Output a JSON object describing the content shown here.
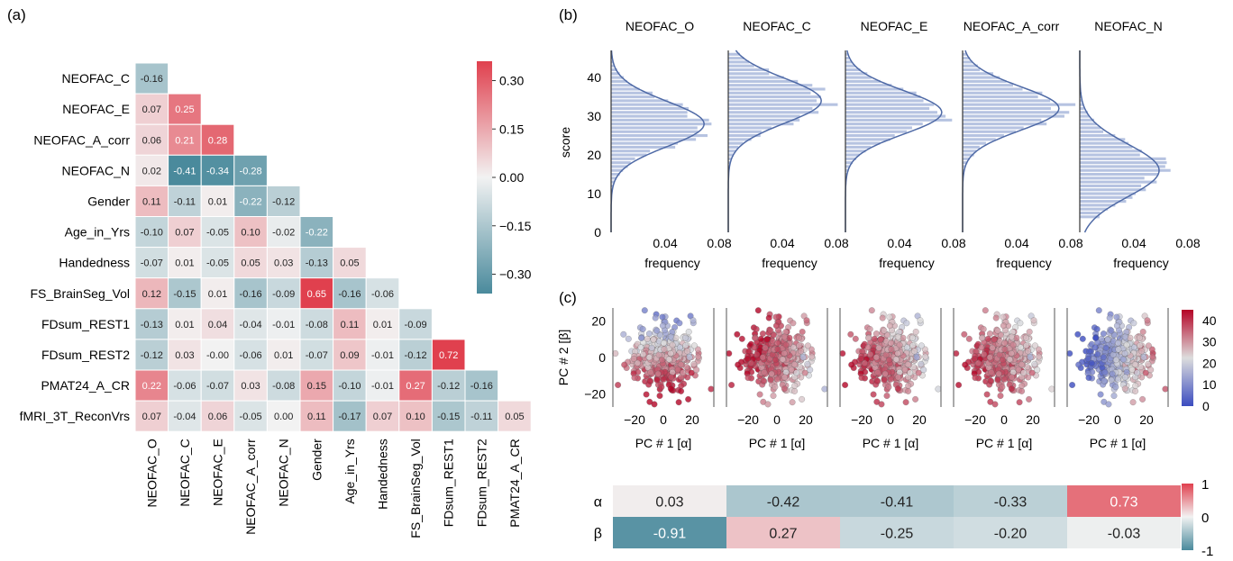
{
  "chart_data": [
    {
      "type": "heatmap",
      "panel_label": "(a)",
      "variables": [
        "NEOFAC_O",
        "NEOFAC_C",
        "NEOFAC_E",
        "NEOFAC_A_corr",
        "NEOFAC_N",
        "Gender",
        "Age_in_Yrs",
        "Handedness",
        "FS_BrainSeg_Vol",
        "FDsum_REST1",
        "FDsum_REST2",
        "PMAT24_A_CR",
        "fMRI_3T_ReconVrs"
      ],
      "row_labels": [
        "NEOFAC_C",
        "NEOFAC_E",
        "NEOFAC_A_corr",
        "NEOFAC_N",
        "Gender",
        "Age_in_Yrs",
        "Handedness",
        "FS_BrainSeg_Vol",
        "FDsum_REST1",
        "FDsum_REST2",
        "PMAT24_A_CR",
        "fMRI_3T_ReconVrs"
      ],
      "col_labels": [
        "NEOFAC_O",
        "NEOFAC_C",
        "NEOFAC_E",
        "NEOFAC_A_corr",
        "NEOFAC_N",
        "Gender",
        "Age_in_Yrs",
        "Handedness",
        "FS_BrainSeg_Vol",
        "FDsum_REST1",
        "FDsum_REST2",
        "PMAT24_A_CR"
      ],
      "display_values": [
        [
          "-0.16"
        ],
        [
          "0.07",
          "0.25"
        ],
        [
          "0.06",
          "0.21",
          "0.28"
        ],
        [
          "0.02",
          "-0.41",
          "-0.34",
          "-0.28"
        ],
        [
          "0.11",
          "-0.11",
          "0.01",
          "-0.22",
          "-0.12"
        ],
        [
          "-0.10",
          "0.07",
          "-0.05",
          "0.10",
          "-0.02",
          "-0.22"
        ],
        [
          "-0.07",
          "0.01",
          "-0.05",
          "0.05",
          "0.03",
          "-0.13",
          "0.05"
        ],
        [
          "0.12",
          "-0.15",
          "0.01",
          "-0.16",
          "-0.09",
          "0.65",
          "-0.16",
          "-0.06"
        ],
        [
          "-0.13",
          "0.01",
          "0.04",
          "-0.04",
          "-0.01",
          "-0.08",
          "0.11",
          "0.01",
          "-0.09"
        ],
        [
          "-0.12",
          "0.03",
          "-0.00",
          "-0.06",
          "0.01",
          "-0.07",
          "0.09",
          "-0.01",
          "-0.12",
          "0.72"
        ],
        [
          "0.22",
          "-0.06",
          "-0.07",
          "0.03",
          "-0.08",
          "0.15",
          "-0.10",
          "-0.01",
          "0.27",
          "-0.12",
          "-0.16"
        ],
        [
          "0.07",
          "-0.04",
          "0.06",
          "-0.05",
          "0.00",
          "0.11",
          "-0.17",
          "0.07",
          "0.10",
          "-0.15",
          "-0.11",
          "0.05"
        ]
      ],
      "colorbar_ticks": [
        "0.30",
        "0.15",
        "0.00",
        "−0.15",
        "−0.30"
      ],
      "color_range": [
        -0.36,
        0.36
      ],
      "cmap": {
        "neg": "#4a8a9c",
        "mid": "#f2f2f2",
        "pos": "#e0404e"
      }
    },
    {
      "type": "histogram",
      "panel_label": "(b)",
      "orientation": "horizontal",
      "panels": [
        {
          "title": "NEOFAC_O",
          "mean": 28,
          "sd": 5.8
        },
        {
          "title": "NEOFAC_C",
          "mean": 34,
          "sd": 5.8
        },
        {
          "title": "NEOFAC_E",
          "mean": 31,
          "sd": 5.6
        },
        {
          "title": "NEOFAC_A_corr",
          "mean": 32,
          "sd": 5.6
        },
        {
          "title": "NEOFAC_N",
          "mean": 16,
          "sd": 6.8
        }
      ],
      "ylabel": "score",
      "ylim": [
        0,
        47
      ],
      "yticks": [
        "0",
        "10",
        "20",
        "30",
        "40"
      ],
      "xlabel": "frequency",
      "xlim": [
        0,
        0.08
      ],
      "xticks": [
        "0.04",
        "0.08"
      ],
      "bar_color": "#a9b9dc",
      "curve_color": "#4f6aa6"
    },
    {
      "type": "scatter",
      "panel_label": "(c)",
      "n_panels": 5,
      "xlabel": "PC # 1 [α]",
      "ylabel": "PC # 2 [β]",
      "xlim": [
        -35,
        35
      ],
      "ylim": [
        -27,
        27
      ],
      "xticks": [
        "−20",
        "0",
        "20"
      ],
      "yticks": [
        "20",
        "0",
        "−20"
      ],
      "colorbar_ticks": [
        "40",
        "30",
        "20",
        "10",
        "0"
      ],
      "color_range": [
        0,
        45
      ],
      "cmap": {
        "low": "#3b4cc0",
        "mid": "#dddddd",
        "high": "#b40426"
      },
      "loadings": {
        "alpha": [
          0.03,
          -0.42,
          -0.41,
          -0.33,
          0.73
        ],
        "beta": [
          -0.91,
          0.27,
          -0.25,
          -0.2,
          -0.03
        ]
      },
      "panel_means": [
        28,
        34,
        31,
        32,
        16
      ]
    },
    {
      "type": "heatmap",
      "rows": [
        "α",
        "β"
      ],
      "display_values": [
        [
          "0.03",
          "-0.42",
          "-0.41",
          "-0.33",
          "0.73"
        ],
        [
          "-0.91",
          "0.27",
          "-0.25",
          "-0.20",
          "-0.03"
        ]
      ],
      "colorbar_ticks": [
        "1",
        "0",
        "-1"
      ],
      "color_range": [
        -1,
        1
      ],
      "cmap": {
        "neg": "#4a8a9c",
        "mid": "#f2f2f2",
        "pos": "#e0404e"
      }
    }
  ]
}
